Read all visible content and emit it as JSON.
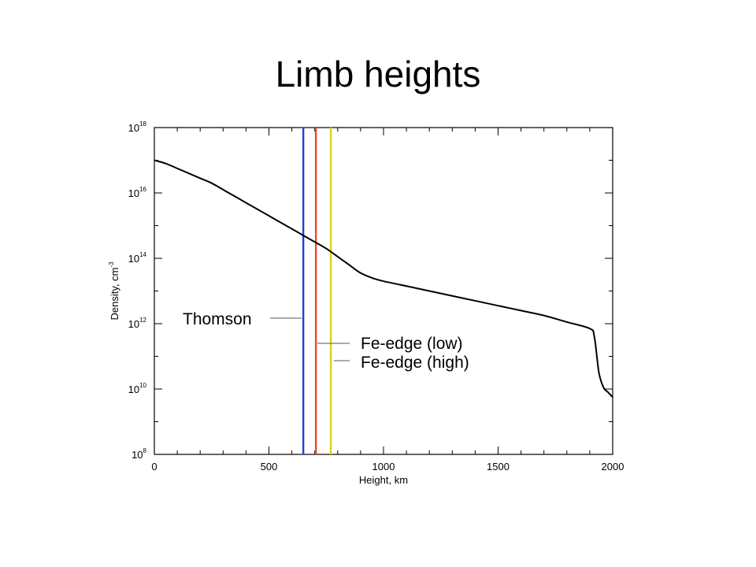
{
  "slide": {
    "title": "Limb heights"
  },
  "chart_data": {
    "type": "line",
    "xlabel": "Height, km",
    "ylabel_base": "Density, cm",
    "ylabel_exp": "-3",
    "xlim": [
      0,
      2000
    ],
    "ylim_log10": [
      8,
      18
    ],
    "y_scale": "log",
    "x_ticks": [
      0,
      500,
      1000,
      1500,
      2000
    ],
    "x_tick_labels": [
      "0",
      "500",
      "1000",
      "1500",
      "2000"
    ],
    "y_ticks_log10": [
      8,
      10,
      12,
      14,
      16,
      18
    ],
    "y_tick_labels": [
      {
        "base": "10",
        "exp": "8"
      },
      {
        "base": "10",
        "exp": "10"
      },
      {
        "base": "10",
        "exp": "12"
      },
      {
        "base": "10",
        "exp": "14"
      },
      {
        "base": "10",
        "exp": "16"
      },
      {
        "base": "10",
        "exp": "18"
      }
    ],
    "grid": false,
    "series": [
      {
        "x": [
          0,
          50,
          100,
          150,
          200,
          250,
          300,
          350,
          400,
          450,
          500,
          550,
          600,
          650,
          700,
          750,
          800,
          850,
          900,
          950,
          1000,
          1100,
          1200,
          1300,
          1400,
          1500,
          1600,
          1700,
          1800,
          1900,
          1920,
          1940,
          1960,
          1980,
          2000
        ],
        "log10_y": [
          17.0,
          16.9,
          16.75,
          16.6,
          16.45,
          16.3,
          16.1,
          15.9,
          15.7,
          15.5,
          15.3,
          15.1,
          14.9,
          14.7,
          14.5,
          14.3,
          14.05,
          13.8,
          13.55,
          13.4,
          13.3,
          13.15,
          13.0,
          12.85,
          12.7,
          12.55,
          12.4,
          12.25,
          12.05,
          11.85,
          11.6,
          10.5,
          10.05,
          9.9,
          9.75
        ],
        "color": "#000000"
      }
    ],
    "vlines": [
      {
        "label": "Thomson",
        "x": 650,
        "color": "#1f3fd6"
      },
      {
        "label": "Fe-edge (low)",
        "x": 705,
        "color": "#ea4a2a"
      },
      {
        "label": "Fe-edge (high)",
        "x": 770,
        "color": "#d9d21b"
      }
    ]
  }
}
